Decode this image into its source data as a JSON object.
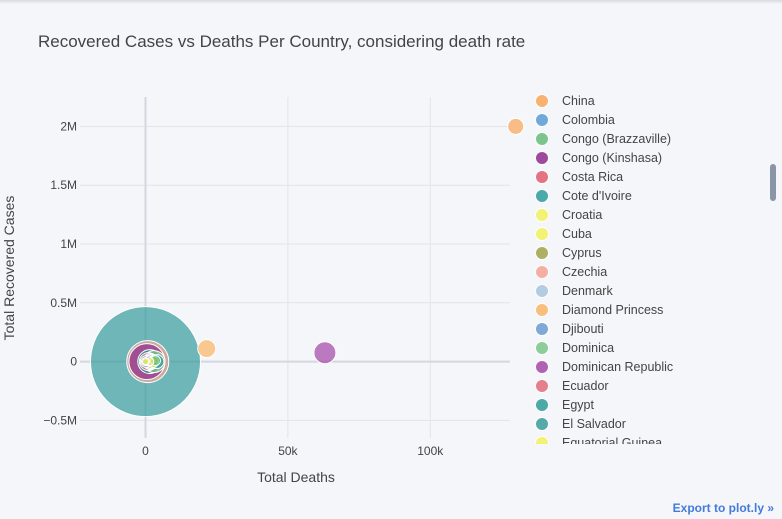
{
  "chart_data": {
    "type": "scatter",
    "title": "Recovered Cases vs Deaths Per Country, considering death rate",
    "xlabel": "Total Deaths",
    "ylabel": "Total Recovered Cases",
    "xlim": [
      -23000,
      128000
    ],
    "ylim": [
      -650000,
      2250000
    ],
    "x_ticks": [
      0,
      50000,
      100000
    ],
    "x_tick_labels": [
      "0",
      "50k",
      "100k"
    ],
    "y_ticks": [
      -500000,
      0,
      500000,
      1000000,
      1500000,
      2000000
    ],
    "y_tick_labels": [
      "−0.5M",
      "0",
      "0.5M",
      "1M",
      "1.5M",
      "2M"
    ],
    "grid": true,
    "legend_placement": "right",
    "series": [
      {
        "name": "China",
        "color": "#f9a65a",
        "x": [
          130000
        ],
        "y": [
          2000000
        ],
        "size": 8
      },
      {
        "name": "Colombia",
        "color": "#5b9bd5",
        "x": [
          1200
        ],
        "y": [
          4000
        ],
        "size": 5
      },
      {
        "name": "Congo (Brazzaville)",
        "color": "#66bd7a",
        "x": [
          3500
        ],
        "y": [
          8000
        ],
        "size": 5
      },
      {
        "name": "Congo (Kinshasa)",
        "color": "#8e2c8e",
        "x": [
          500
        ],
        "y": [
          0
        ],
        "size": 18
      },
      {
        "name": "Costa Rica",
        "color": "#e05c6e",
        "x": [
          2000
        ],
        "y": [
          0
        ],
        "size": 7
      },
      {
        "name": "Cote d'Ivoire",
        "color": "#2e9c9c",
        "x": [
          4000
        ],
        "y": [
          0
        ],
        "size": 7
      },
      {
        "name": "Croatia",
        "color": "#f2f25e",
        "x": [
          1500
        ],
        "y": [
          0
        ],
        "size": 4
      },
      {
        "name": "Cuba",
        "color": "#f2f25e",
        "x": [
          2500
        ],
        "y": [
          0
        ],
        "size": 6
      },
      {
        "name": "Cyprus",
        "color": "#a3a34a",
        "x": [
          0
        ],
        "y": [
          0
        ],
        "size": 4
      },
      {
        "name": "Czechia",
        "color": "#f5a294",
        "x": [
          800
        ],
        "y": [
          0
        ],
        "size": 21
      },
      {
        "name": "Denmark",
        "color": "#a9c5de",
        "x": [
          1800
        ],
        "y": [
          0
        ],
        "size": 8
      },
      {
        "name": "Diamond Princess",
        "color": "#f9b566",
        "x": [
          21500
        ],
        "y": [
          110000
        ],
        "size": 9
      },
      {
        "name": "Djibouti",
        "color": "#6a9bd0",
        "x": [
          300
        ],
        "y": [
          0
        ],
        "size": 6
      },
      {
        "name": "Dominica",
        "color": "#7cc68a",
        "x": [
          3000
        ],
        "y": [
          0
        ],
        "size": 11
      },
      {
        "name": "Dominican Republic",
        "color": "#a54aa8",
        "x": [
          63000
        ],
        "y": [
          75000
        ],
        "size": 11
      },
      {
        "name": "Ecuador",
        "color": "#e36a7a",
        "x": [
          1000
        ],
        "y": [
          0
        ],
        "size": 9
      },
      {
        "name": "Egypt",
        "color": "#2f9c98",
        "x": [
          1500
        ],
        "y": [
          0
        ],
        "size": 12
      },
      {
        "name": "El Salvador",
        "color": "#3a9c9c",
        "x": [
          0
        ],
        "y": [
          0
        ],
        "size": 55
      },
      {
        "name": "Equatorial Guinea",
        "color": "#f2f25e",
        "x": [
          0
        ],
        "y": [
          0
        ],
        "size": 3
      }
    ],
    "annotations": []
  },
  "export_label": "Export to plot.ly »"
}
